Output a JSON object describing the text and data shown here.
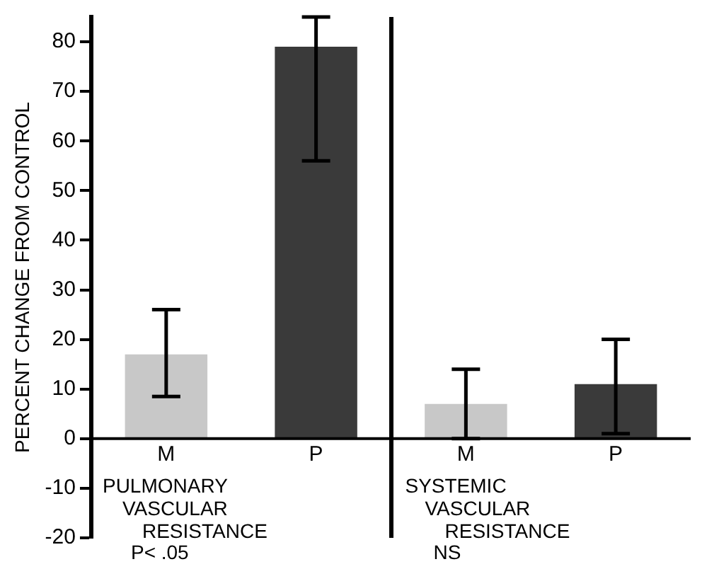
{
  "chart_data": {
    "type": "bar",
    "ylabel": "PERCENT CHANGE FROM CONTROL",
    "categories": [
      "M",
      "P",
      "M",
      "P"
    ],
    "values": [
      17,
      79,
      7,
      11
    ],
    "colors": [
      "#c8c8c8",
      "#3a3a3a",
      "#c8c8c8",
      "#3a3a3a"
    ],
    "errors": [
      [
        8.5,
        26
      ],
      [
        56,
        85
      ],
      [
        0,
        14
      ],
      [
        1,
        20
      ]
    ],
    "ylim": [
      -20,
      85
    ],
    "yticks": [
      -20,
      -10,
      0,
      10,
      20,
      30,
      40,
      50,
      60,
      70,
      80
    ],
    "grid": false,
    "legend": false,
    "annotations": [
      "PULMONARY\nVASCULAR\nRESISTANCE",
      "P< .05",
      "SYSTEMIC\nVASCULAR\nRESISTANCE",
      "NS"
    ]
  }
}
